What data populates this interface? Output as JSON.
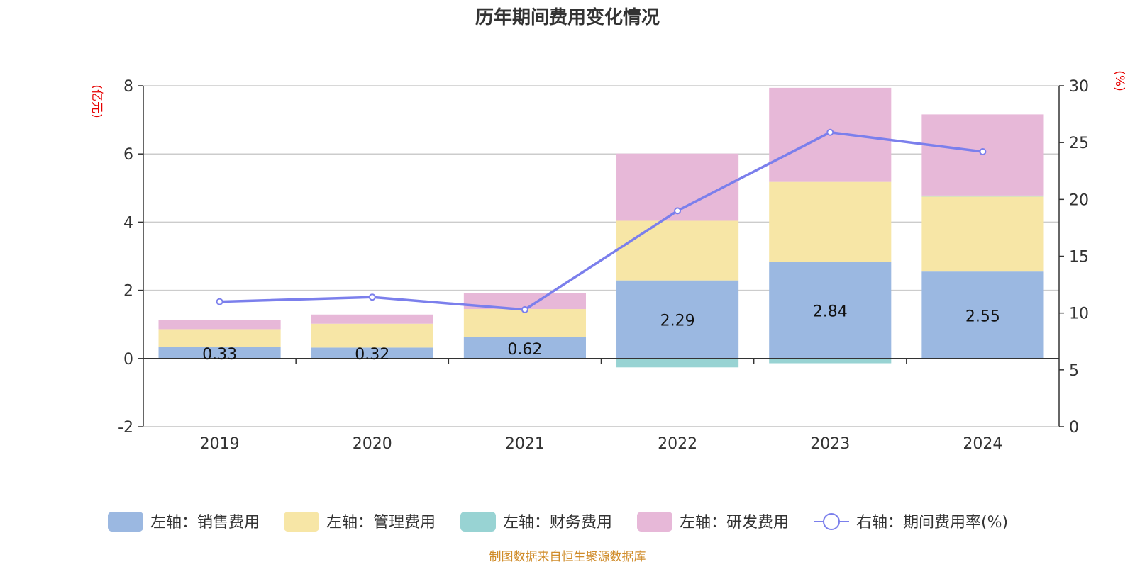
{
  "chart_data": {
    "type": "bar",
    "title": "历年期间费用变化情况",
    "categories": [
      "2019",
      "2020",
      "2021",
      "2022",
      "2023",
      "2024"
    ],
    "left_axis": {
      "label": "(亿元)",
      "range": [
        -2,
        8
      ],
      "ticks": [
        "8",
        "6",
        "4",
        "2",
        "0",
        "-2"
      ],
      "tick_values": [
        8,
        6,
        4,
        2,
        0,
        -2
      ]
    },
    "right_axis": {
      "label": "(%)",
      "range": [
        0,
        30
      ],
      "ticks": [
        "30",
        "25",
        "20",
        "15",
        "10",
        "5",
        "0"
      ],
      "tick_values": [
        30,
        25,
        20,
        15,
        10,
        5,
        0
      ]
    },
    "series": [
      {
        "name": "左轴：销售费用",
        "axis": "left",
        "type": "bar",
        "color": "#9bb8e1",
        "values": [
          0.33,
          0.32,
          0.62,
          2.29,
          2.84,
          2.55
        ],
        "labels": [
          "0.33",
          "0.32",
          "0.62",
          "2.29",
          "2.84",
          "2.55"
        ]
      },
      {
        "name": "左轴：管理费用",
        "axis": "left",
        "type": "bar",
        "color": "#f7e6a6",
        "values": [
          0.53,
          0.7,
          0.83,
          1.75,
          2.34,
          2.2
        ]
      },
      {
        "name": "左轴：财务费用",
        "axis": "left",
        "type": "bar",
        "color": "#98d3d3",
        "values": [
          0.0,
          0.0,
          0.0,
          -0.26,
          -0.14,
          0.03
        ]
      },
      {
        "name": "左轴：研发费用",
        "axis": "left",
        "type": "bar",
        "color": "#e7b8d8",
        "values": [
          0.27,
          0.27,
          0.47,
          1.97,
          2.76,
          2.38
        ]
      },
      {
        "name": "右轴：期间费用率(%)",
        "axis": "right",
        "type": "line",
        "color": "#7b7fec",
        "values": [
          11.0,
          11.4,
          10.3,
          19.0,
          25.9,
          24.2
        ]
      }
    ],
    "legend_position": "bottom",
    "grid": true
  },
  "footer": {
    "source": "制图数据来自恒生聚源数据库"
  }
}
